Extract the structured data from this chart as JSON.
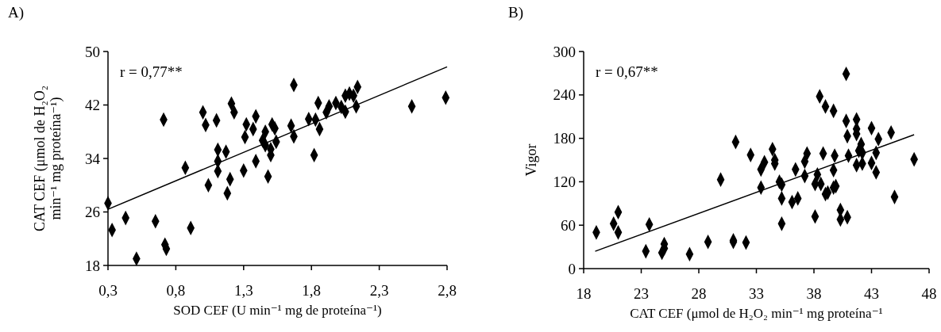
{
  "chart_data": [
    {
      "type": "scatter",
      "title": "A)",
      "xlabel": "SOD CEF (U min⁻¹ mg de proteína⁻¹)",
      "ylabel": "CAT CEF (μmol de H₂O₂ min⁻¹ mg  proteína⁻¹)",
      "annotations": [
        "r = 0,77**"
      ],
      "xlim": [
        0.3,
        2.8
      ],
      "ylim": [
        18,
        50
      ],
      "xticks": [
        {
          "value": 0.3,
          "label": "0,3"
        },
        {
          "value": 0.8,
          "label": "0,8"
        },
        {
          "value": 1.3,
          "label": "1,3"
        },
        {
          "value": 1.8,
          "label": "1,8"
        },
        {
          "value": 2.3,
          "label": "2,3"
        },
        {
          "value": 2.8,
          "label": "2,8"
        }
      ],
      "yticks": [
        18,
        26,
        34,
        42,
        50
      ],
      "series": [
        {
          "color": "#000000",
          "marker": "diamond",
          "x": [
            0.3,
            0.33,
            0.43,
            0.51,
            0.65,
            0.71,
            0.72,
            0.73,
            0.87,
            0.91,
            1.0,
            1.02,
            1.04,
            1.1,
            1.11,
            1.17,
            1.11,
            1.11,
            1.2,
            1.18,
            1.21,
            1.23,
            1.3,
            1.31,
            1.32,
            1.37,
            1.39,
            1.39,
            1.44,
            1.46,
            1.46,
            1.48,
            1.5,
            1.5,
            1.51,
            1.53,
            1.54,
            1.65,
            1.67,
            1.67,
            1.78,
            1.82,
            1.83,
            1.85,
            1.86,
            1.91,
            1.93,
            1.98,
            2.02,
            2.05,
            2.05,
            2.08,
            2.11,
            2.14,
            2.13,
            2.54,
            2.79
          ],
          "values": [
            27.3,
            23.3,
            25.1,
            19.0,
            24.6,
            39.8,
            21.1,
            20.5,
            32.6,
            23.6,
            40.9,
            39.0,
            30.0,
            39.7,
            35.3,
            35.0,
            33.6,
            32.1,
            30.9,
            28.8,
            42.2,
            40.9,
            32.2,
            37.2,
            39.1,
            38.4,
            40.3,
            33.6,
            36.7,
            38.0,
            36.0,
            31.3,
            35.4,
            34.5,
            39.1,
            38.5,
            36.5,
            38.9,
            37.3,
            45.0,
            39.9,
            34.5,
            39.8,
            42.3,
            38.4,
            40.9,
            41.8,
            42.3,
            41.7,
            41.0,
            43.4,
            43.7,
            43.4,
            44.7,
            41.8,
            41.8,
            43.1
          ]
        },
        {
          "type": "line",
          "color": "#000000",
          "x": [
            0.3,
            2.8
          ],
          "values": [
            26.4,
            47.7
          ]
        }
      ]
    },
    {
      "type": "scatter",
      "title": "B)",
      "xlabel": "CAT CEF (μmol de H₂O₂ min⁻¹ mg proteína⁻¹",
      "ylabel": "Vigor",
      "annotations": [
        "r = 0,67**"
      ],
      "xlim": [
        18,
        48
      ],
      "ylim": [
        0,
        300
      ],
      "xticks": [
        18,
        23,
        28,
        33,
        38,
        43,
        48
      ],
      "yticks": [
        0,
        60,
        120,
        180,
        240,
        300
      ],
      "series": [
        {
          "color": "#000000",
          "marker": "diamond",
          "x": [
            19.1,
            20.6,
            21.0,
            21.0,
            23.4,
            23.7,
            25.0,
            25.0,
            24.8,
            27.2,
            28.8,
            31.0,
            31.0,
            32.1,
            29.9,
            31.2,
            32.5,
            33.4,
            33.7,
            33.4,
            34.4,
            34.6,
            34.6,
            35.0,
            35.2,
            35.2,
            35.2,
            36.1,
            36.6,
            36.4,
            37.2,
            37.4,
            37.2,
            38.1,
            38.1,
            38.3,
            38.6,
            38.5,
            38.8,
            39.0,
            39.0,
            39.2,
            39.7,
            39.7,
            39.8,
            39.7,
            39.9,
            40.3,
            40.3,
            40.9,
            40.8,
            40.8,
            40.9,
            41.0,
            41.7,
            41.7,
            41.7,
            41.7,
            41.9,
            42.1,
            42.2,
            42.2,
            43.0,
            43.4,
            43.0,
            43.4,
            43.6,
            44.7,
            45.0,
            46.7
          ],
          "values": [
            50,
            62,
            78,
            50,
            24,
            61,
            34,
            28,
            22,
            20,
            37,
            39,
            37,
            36,
            123,
            175,
            157,
            137,
            147,
            112,
            165,
            150,
            145,
            120,
            116,
            97,
            62,
            92,
            97,
            137,
            148,
            159,
            128,
            72,
            117,
            130,
            117,
            238,
            159,
            224,
            103,
            105,
            218,
            136,
            156,
            112,
            114,
            81,
            68,
            71,
            269,
            204,
            183,
            156,
            206,
            193,
            186,
            143,
            163,
            172,
            160,
            145,
            194,
            160,
            146,
            133,
            179,
            188,
            99,
            151
          ]
        },
        {
          "type": "line",
          "color": "#000000",
          "x": [
            19.0,
            46.7
          ],
          "values": [
            24,
            185
          ]
        }
      ]
    }
  ]
}
